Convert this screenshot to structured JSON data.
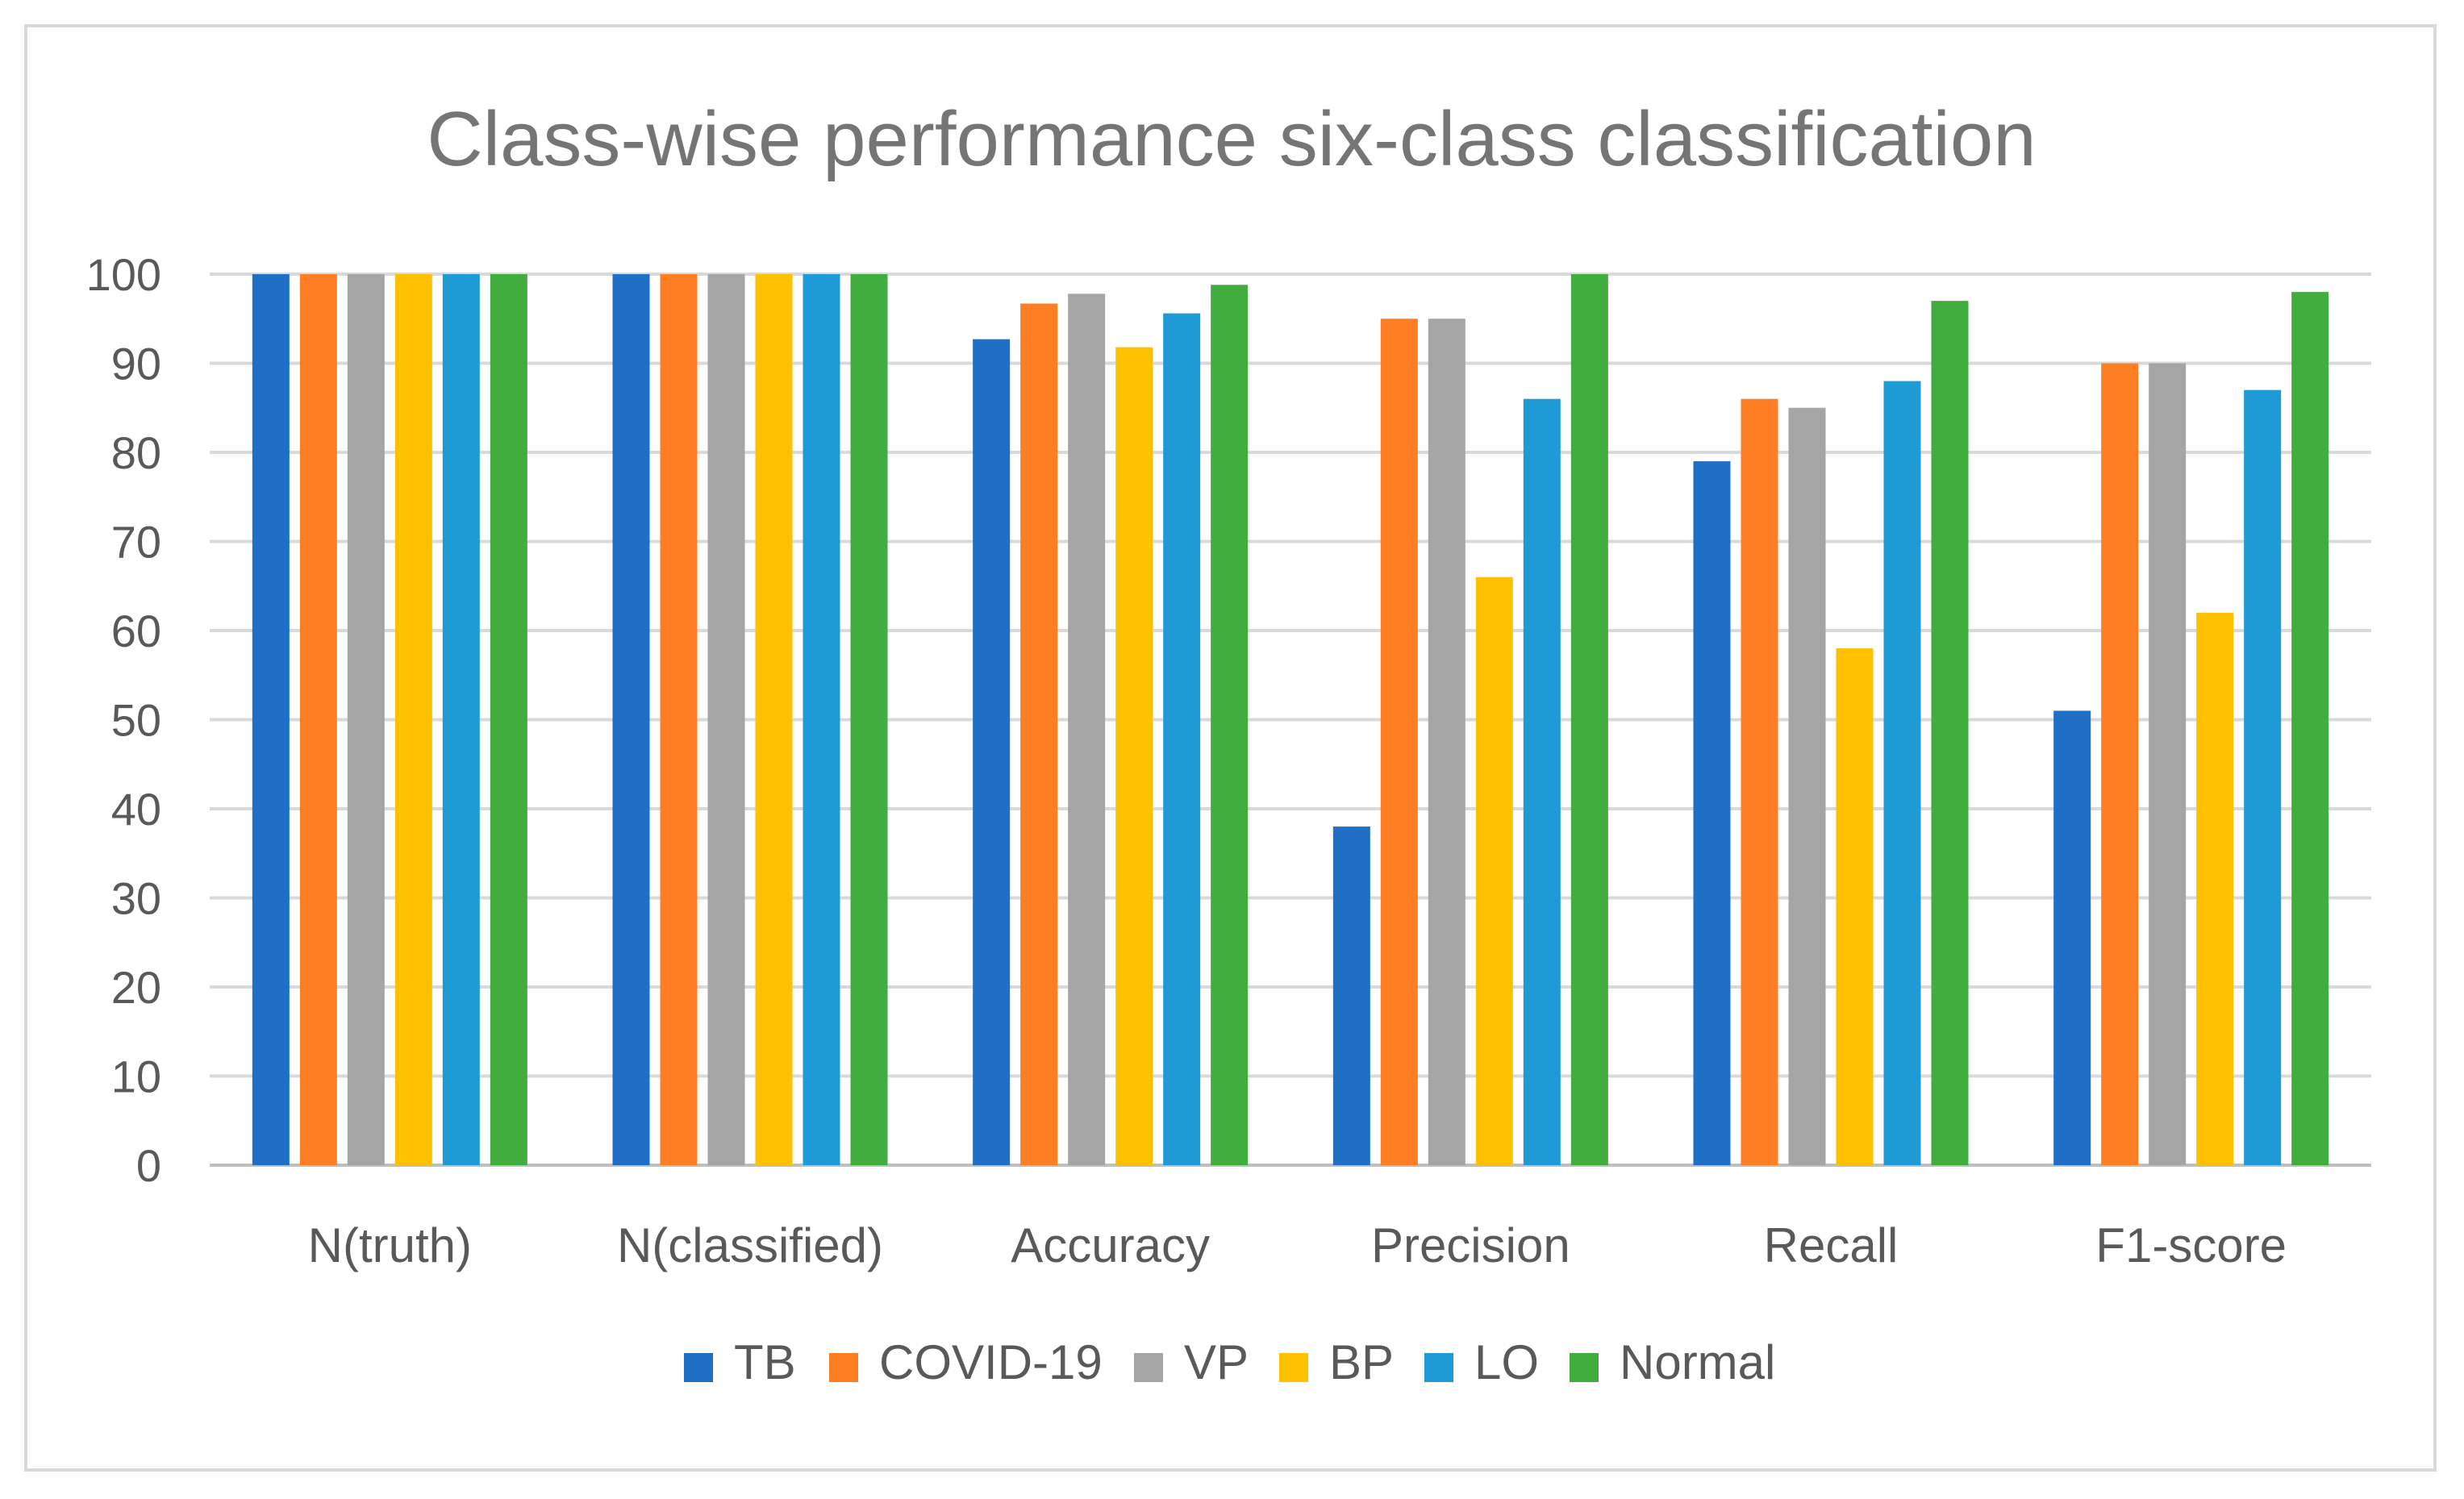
{
  "chart_data": {
    "type": "bar",
    "title": "Class-wise performance six-class classification",
    "xlabel": "",
    "ylabel": "",
    "ylim": [
      0,
      100
    ],
    "yticks": [
      0,
      10,
      20,
      30,
      40,
      50,
      60,
      70,
      80,
      90,
      100
    ],
    "grid": true,
    "legend_position": "bottom",
    "categories": [
      "N(truth)",
      "N(classified)",
      "Accuracy",
      "Precision",
      "Recall",
      "F1-score"
    ],
    "series": [
      {
        "name": "TB",
        "color": "#1f6fc6",
        "values": [
          100,
          100,
          92.7,
          38,
          79,
          51
        ]
      },
      {
        "name": "COVID-19",
        "color": "#fd7e23",
        "values": [
          100,
          100,
          96.7,
          95,
          86,
          90
        ]
      },
      {
        "name": "VP",
        "color": "#a5a5a5",
        "values": [
          100,
          100,
          97.8,
          95,
          85,
          90
        ]
      },
      {
        "name": "BP",
        "color": "#ffc000",
        "values": [
          100,
          100,
          91.8,
          66,
          58,
          62
        ]
      },
      {
        "name": "LO",
        "color": "#1e9bd7",
        "values": [
          100,
          100,
          95.6,
          86,
          88,
          87
        ]
      },
      {
        "name": "Normal",
        "color": "#41ad3f",
        "values": [
          100,
          100,
          98.8,
          100,
          97,
          98
        ]
      }
    ]
  }
}
